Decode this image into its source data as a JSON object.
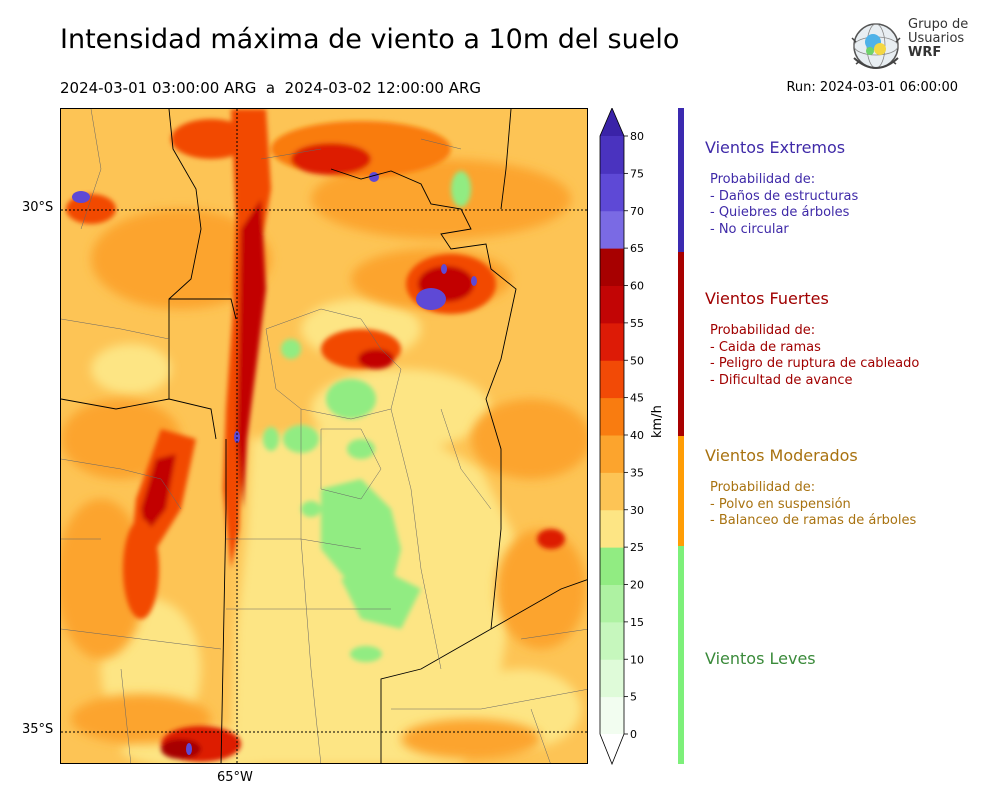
{
  "title": "Intensidad máxima de viento a 10m del suelo",
  "subtitle": "2024-03-01 03:00:00 ARG  a  2024-03-02 12:00:00 ARG",
  "run": "Run: 2024-03-01 06:00:00",
  "logo": {
    "line1": "Grupo de",
    "line2": "Usuarios",
    "line3": "WRF"
  },
  "chart_data": {
    "type": "heatmap",
    "title": "Intensidad máxima de viento a 10m del suelo",
    "colorbar": {
      "unit": "km/h",
      "ticks": [
        "0",
        "5",
        "10",
        "15",
        "20",
        "25",
        "30",
        "35",
        "40",
        "45",
        "50",
        "55",
        "60",
        "65",
        "70",
        "75",
        "80"
      ],
      "levels": [
        0,
        5,
        10,
        15,
        20,
        25,
        30,
        35,
        40,
        45,
        50,
        55,
        60,
        65,
        70,
        75,
        80
      ],
      "colors": [
        "#f2fdf0",
        "#dffbd9",
        "#c6f7bd",
        "#aef2a2",
        "#91ec82",
        "#fde584",
        "#fdc455",
        "#fca42d",
        "#f97c10",
        "#f24a06",
        "#dd1b06",
        "#c20505",
        "#a70000",
        "#7a6ae4",
        "#5e49d6",
        "#4a33bf"
      ],
      "extend": "both"
    },
    "lat_ticks": [
      "30°S",
      "35°S"
    ],
    "lon_ticks": [
      "65°W"
    ]
  },
  "legend": [
    {
      "title": "Vientos Extremos",
      "color": "#3f2aa8",
      "bar_color": "#3b2ab0",
      "lines": [
        "Probabilidad de:",
        "- Daños de estructuras",
        "- Quiebres de árboles",
        "- No circular"
      ]
    },
    {
      "title": "Vientos Fuertes",
      "color": "#a00000",
      "bar_color": "#a80000",
      "lines": [
        "Probabilidad de:",
        "- Caida de ramas",
        "- Peligro de ruptura de cableado",
        "- Dificultad de avance"
      ]
    },
    {
      "title": "Vientos Moderados",
      "color": "#a87210",
      "bar_color": "#ff9d05",
      "lines": [
        "Probabilidad de:",
        "- Polvo en suspensión",
        "- Balanceo de ramas de árboles"
      ]
    },
    {
      "title": "Vientos Leves",
      "color": "#3a8a3a",
      "bar_color": "#7df07a",
      "lines": []
    }
  ]
}
